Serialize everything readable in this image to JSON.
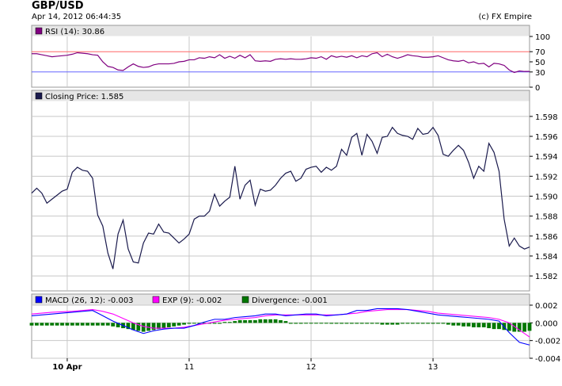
{
  "header": {
    "title": "GBP/USD",
    "timestamp": "Apr 14, 2012 06:44:35",
    "copyright": "(c) FX Empire"
  },
  "colors": {
    "rsi": "#800080",
    "rsi_upper": "#ff6666",
    "rsi_lower": "#6666ff",
    "price": "#1a1a4d",
    "macd": "#0000ff",
    "exp": "#ff00ff",
    "divergence": "#007700",
    "legend_bar": "#e6e6e6",
    "grid": "#c8c8c8"
  },
  "x_axis": {
    "ticks": [
      {
        "label": "10 Apr",
        "bold": true,
        "x": 7
      },
      {
        "label": "11",
        "bold": false,
        "x": 31
      },
      {
        "label": "12",
        "bold": false,
        "x": 55
      },
      {
        "label": "13",
        "bold": false,
        "x": 79
      }
    ],
    "x_range": [
      0,
      98
    ]
  },
  "chart_data": [
    {
      "type": "line",
      "panel": "rsi",
      "legend": "RSI (14): 30.86",
      "ylim": [
        0,
        100
      ],
      "yticks": [
        "100",
        "70",
        "50",
        "30",
        "0"
      ],
      "tick_values": [
        100,
        70,
        50,
        30,
        0
      ],
      "reference_lines": [
        70,
        30
      ],
      "series": [
        {
          "name": "RSI (14)",
          "x": [
            0,
            1,
            2,
            3,
            4,
            5,
            6,
            7,
            8,
            9,
            10,
            11,
            12,
            13,
            14,
            15,
            16,
            17,
            18,
            19,
            20,
            21,
            22,
            23,
            24,
            25,
            26,
            27,
            28,
            29,
            30,
            31,
            32,
            33,
            34,
            35,
            36,
            37,
            38,
            39,
            40,
            41,
            42,
            43,
            44,
            45,
            46,
            47,
            48,
            49,
            50,
            51,
            52,
            53,
            54,
            55,
            56,
            57,
            58,
            59,
            60,
            61,
            62,
            63,
            64,
            65,
            66,
            67,
            68,
            69,
            70,
            71,
            72,
            73,
            74,
            75,
            76,
            77,
            78,
            79,
            80,
            81,
            82,
            83,
            84,
            85,
            86,
            87,
            88,
            89,
            90,
            91,
            92,
            93,
            94,
            95,
            96,
            97,
            98
          ],
          "values": [
            66,
            66,
            64,
            62,
            60,
            61,
            62,
            63,
            65,
            68,
            67,
            66,
            64,
            63,
            50,
            41,
            39,
            34,
            33,
            40,
            46,
            41,
            39,
            40,
            44,
            46,
            46,
            46,
            47,
            50,
            51,
            54,
            54,
            58,
            57,
            60,
            58,
            64,
            57,
            61,
            57,
            63,
            58,
            64,
            52,
            51,
            52,
            51,
            55,
            56,
            55,
            56,
            55,
            55,
            56,
            58,
            57,
            60,
            55,
            62,
            59,
            61,
            59,
            62,
            58,
            62,
            60,
            66,
            68,
            60,
            65,
            60,
            57,
            60,
            64,
            62,
            61,
            59,
            59,
            60,
            62,
            58,
            54,
            52,
            51,
            53,
            48,
            50,
            46,
            47,
            40,
            47,
            46,
            43,
            34,
            29,
            32,
            31,
            31
          ]
        }
      ]
    },
    {
      "type": "line",
      "panel": "price",
      "legend": "Closing Price: 1.585",
      "ylim": [
        1.5805,
        1.5995
      ],
      "yticks": [
        "1.598",
        "1.596",
        "1.594",
        "1.592",
        "1.590",
        "1.588",
        "1.586",
        "1.584",
        "1.582"
      ],
      "tick_values": [
        1.598,
        1.596,
        1.594,
        1.592,
        1.59,
        1.588,
        1.586,
        1.584,
        1.582
      ],
      "series": [
        {
          "name": "Closing Price",
          "x": [
            0,
            1,
            2,
            3,
            4,
            5,
            6,
            7,
            8,
            9,
            10,
            11,
            12,
            13,
            14,
            15,
            16,
            17,
            18,
            19,
            20,
            21,
            22,
            23,
            24,
            25,
            26,
            27,
            28,
            29,
            30,
            31,
            32,
            33,
            34,
            35,
            36,
            37,
            38,
            39,
            40,
            41,
            42,
            43,
            44,
            45,
            46,
            47,
            48,
            49,
            50,
            51,
            52,
            53,
            54,
            55,
            56,
            57,
            58,
            59,
            60,
            61,
            62,
            63,
            64,
            65,
            66,
            67,
            68,
            69,
            70,
            71,
            72,
            73,
            74,
            75,
            76,
            77,
            78,
            79,
            80,
            81,
            82,
            83,
            84,
            85,
            86,
            87,
            88,
            89,
            90,
            91,
            92,
            93,
            94,
            95,
            96,
            97,
            98
          ],
          "values": [
            1.5903,
            1.5908,
            1.5903,
            1.5893,
            1.5897,
            1.5901,
            1.5905,
            1.5907,
            1.5924,
            1.5929,
            1.5926,
            1.5925,
            1.5918,
            1.5881,
            1.587,
            1.5843,
            1.5827,
            1.5862,
            1.5876,
            1.5847,
            1.5834,
            1.5833,
            1.5853,
            1.5863,
            1.5862,
            1.5872,
            1.5864,
            1.5863,
            1.5858,
            1.5853,
            1.5857,
            1.5862,
            1.5877,
            1.588,
            1.588,
            1.5885,
            1.5902,
            1.589,
            1.5895,
            1.5899,
            1.593,
            1.5897,
            1.5911,
            1.5916,
            1.5891,
            1.5907,
            1.5905,
            1.5906,
            1.5911,
            1.5918,
            1.5923,
            1.5925,
            1.5915,
            1.5918,
            1.5927,
            1.5929,
            1.593,
            1.5924,
            1.5929,
            1.5926,
            1.593,
            1.5947,
            1.5941,
            1.5959,
            1.5963,
            1.5941,
            1.5962,
            1.5955,
            1.5943,
            1.5959,
            1.596,
            1.5969,
            1.5963,
            1.5961,
            1.596,
            1.5957,
            1.5968,
            1.5962,
            1.5963,
            1.5969,
            1.5961,
            1.5942,
            1.594,
            1.5946,
            1.5951,
            1.5946,
            1.5934,
            1.5918,
            1.593,
            1.5925,
            1.5953,
            1.5944,
            1.5925,
            1.5877,
            1.585,
            1.5858,
            1.585,
            1.5847,
            1.5849
          ]
        }
      ]
    },
    {
      "type": "line",
      "panel": "macd",
      "legend": [
        "MACD (26, 12): -0.003",
        "EXP (9): -0.002",
        "Divergence: -0.001"
      ],
      "ylim": [
        -0.004,
        0.002
      ],
      "yticks": [
        "0.002",
        "0.000",
        "-0.002",
        "-0.004"
      ],
      "tick_values": [
        0.002,
        0,
        -0.002,
        -0.004
      ],
      "series": [
        {
          "name": "MACD (26, 12)",
          "x": [
            0,
            4,
            8,
            12,
            14,
            16,
            18,
            20,
            22,
            24,
            26,
            28,
            30,
            32,
            34,
            36,
            38,
            40,
            42,
            44,
            46,
            48,
            50,
            52,
            54,
            56,
            58,
            60,
            62,
            64,
            66,
            68,
            70,
            72,
            74,
            76,
            78,
            80,
            82,
            84,
            86,
            88,
            90,
            92,
            94,
            96,
            98
          ],
          "values": [
            0.0008,
            0.001,
            0.0012,
            0.0014,
            0.0008,
            0.0002,
            -0.0003,
            -0.0008,
            -0.0012,
            -0.0009,
            -0.0007,
            -0.0006,
            -0.0006,
            -0.0003,
            0.0001,
            0.0004,
            0.0004,
            0.0006,
            0.0007,
            0.0008,
            0.001,
            0.001,
            0.0008,
            0.0009,
            0.001,
            0.001,
            0.0008,
            0.0009,
            0.001,
            0.0014,
            0.0014,
            0.0016,
            0.0016,
            0.0016,
            0.0015,
            0.0013,
            0.0011,
            0.0009,
            0.0008,
            0.0007,
            0.0006,
            0.0005,
            0.0004,
            0.0002,
            -0.0011,
            -0.0022,
            -0.0025
          ]
        },
        {
          "name": "EXP (9)",
          "x": [
            0,
            4,
            8,
            12,
            14,
            16,
            18,
            20,
            22,
            24,
            26,
            28,
            30,
            32,
            34,
            36,
            38,
            40,
            42,
            44,
            46,
            48,
            50,
            52,
            54,
            56,
            58,
            60,
            62,
            64,
            66,
            68,
            70,
            72,
            74,
            76,
            78,
            80,
            82,
            84,
            86,
            88,
            90,
            92,
            94,
            96,
            98
          ],
          "values": [
            0.001,
            0.0012,
            0.0013,
            0.0015,
            0.0013,
            0.001,
            0.0005,
            0.0,
            -0.0004,
            -0.0006,
            -0.0006,
            -0.0006,
            -0.0005,
            -0.0003,
            -0.0001,
            0.0001,
            0.0003,
            0.0004,
            0.0005,
            0.0006,
            0.0008,
            0.0009,
            0.0009,
            0.0009,
            0.0009,
            0.0009,
            0.0009,
            0.0009,
            0.001,
            0.0011,
            0.0013,
            0.0014,
            0.0015,
            0.0015,
            0.0015,
            0.0014,
            0.0013,
            0.0011,
            0.001,
            0.0009,
            0.0008,
            0.0007,
            0.0006,
            0.0004,
            0.0,
            -0.0008,
            -0.0016
          ]
        }
      ],
      "divergence": {
        "name": "Divergence",
        "x": [
          0,
          1,
          2,
          3,
          4,
          5,
          6,
          7,
          8,
          9,
          10,
          11,
          12,
          13,
          14,
          15,
          16,
          17,
          18,
          19,
          20,
          21,
          22,
          23,
          24,
          25,
          26,
          27,
          28,
          29,
          30,
          31,
          32,
          33,
          34,
          35,
          36,
          37,
          38,
          39,
          40,
          41,
          42,
          43,
          44,
          45,
          46,
          47,
          48,
          49,
          50,
          51,
          52,
          53,
          54,
          55,
          56,
          57,
          58,
          59,
          60,
          61,
          62,
          63,
          64,
          65,
          66,
          67,
          68,
          69,
          70,
          71,
          72,
          73,
          74,
          75,
          76,
          77,
          78,
          79,
          80,
          81,
          82,
          83,
          84,
          85,
          86,
          87,
          88,
          89,
          90,
          91,
          92,
          93,
          94,
          95,
          96,
          97,
          98
        ],
        "values": [
          -0.0003,
          -0.0003,
          -0.0003,
          -0.0003,
          -0.0003,
          -0.0003,
          -0.0003,
          -0.0003,
          -0.0003,
          -0.0003,
          -0.0003,
          -0.0003,
          -0.0003,
          -0.0003,
          -0.0003,
          -0.0003,
          -0.0004,
          -0.0005,
          -0.0006,
          -0.0007,
          -0.0008,
          -0.0009,
          -0.001,
          -0.0009,
          -0.0008,
          -0.0007,
          -0.0006,
          -0.0005,
          -0.0004,
          -0.0003,
          -0.0002,
          -0.0001,
          0.0,
          0.0,
          -0.0001,
          -0.0001,
          -0.0001,
          -0.0001,
          0.0001,
          0.0001,
          0.0002,
          0.0003,
          0.0003,
          0.0003,
          0.0003,
          0.0004,
          0.0004,
          0.0004,
          0.0004,
          0.0003,
          0.0002,
          -0.0001,
          -0.0001,
          -0.0001,
          0.0,
          0.0,
          0.0,
          0.0,
          0.0,
          -0.0001,
          -0.0001,
          -0.0001,
          -0.0001,
          -0.0001,
          -0.0001,
          -0.0001,
          -0.0001,
          -0.0001,
          -0.0001,
          -0.0002,
          -0.0002,
          -0.0002,
          -0.0002,
          -0.0001,
          -0.0001,
          -0.0001,
          -0.0001,
          -0.0001,
          -0.0001,
          -0.0001,
          -0.0001,
          -0.0001,
          -0.0002,
          -0.0003,
          -0.0003,
          -0.0004,
          -0.0004,
          -0.0005,
          -0.0005,
          -0.0005,
          -0.0006,
          -0.0007,
          -0.0007,
          -0.0008,
          -0.0009,
          -0.001,
          -0.001,
          -0.001,
          -0.0009
        ]
      }
    }
  ]
}
